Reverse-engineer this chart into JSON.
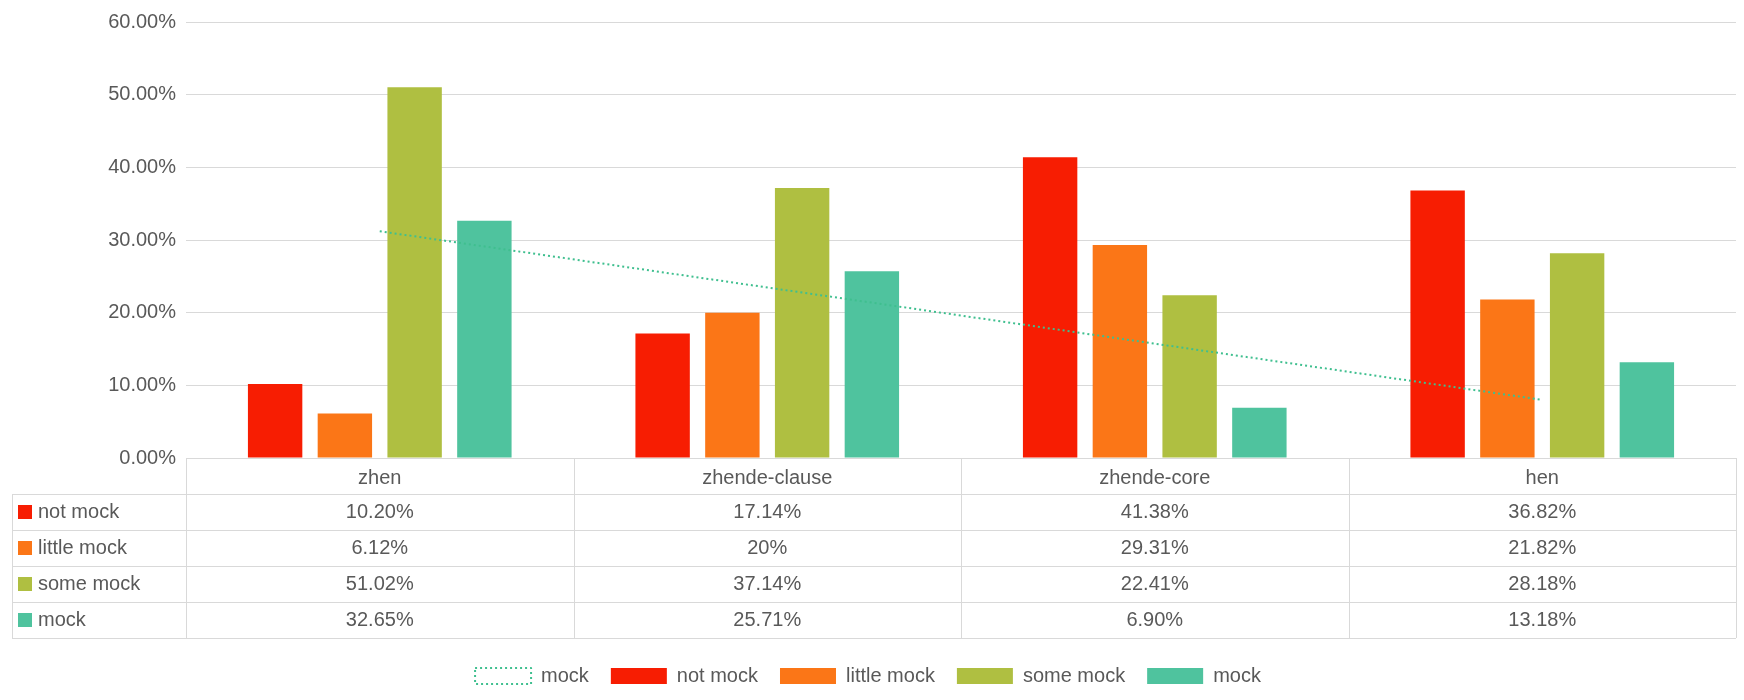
{
  "chart_data": {
    "type": "bar",
    "categories": [
      "zhen",
      "zhende-clause",
      "zhende-core",
      "hen"
    ],
    "series": [
      {
        "name": "not mock",
        "color": "#f71d02",
        "values": [
          10.2,
          17.14,
          41.38,
          36.82
        ],
        "value_labels": [
          "10.20%",
          "17.14%",
          "41.38%",
          "36.82%"
        ]
      },
      {
        "name": "little mock",
        "color": "#fb7617",
        "values": [
          6.12,
          20,
          29.31,
          21.82
        ],
        "value_labels": [
          "6.12%",
          "20%",
          "29.31%",
          "21.82%"
        ]
      },
      {
        "name": "some mock",
        "color": "#afbf41",
        "values": [
          51.02,
          37.14,
          22.41,
          28.18
        ],
        "value_labels": [
          "51.02%",
          "37.14%",
          "22.41%",
          "28.18%"
        ]
      },
      {
        "name": "mock",
        "color": "#4fc39e",
        "values": [
          32.65,
          25.71,
          6.9,
          13.18
        ],
        "value_labels": [
          "32.65%",
          "25.71%",
          "6.90%",
          "13.18%"
        ]
      },
      {
        "name": "mock",
        "type": "line",
        "color": "#3fbf8f",
        "x": [
          "zhen",
          "hen"
        ],
        "values": [
          31.2,
          8.0
        ],
        "line_style": "dotted",
        "marker": "none"
      }
    ],
    "ylim": [
      0,
      60
    ],
    "yticks": [
      {
        "value": 0,
        "label": "0.00%"
      },
      {
        "value": 10,
        "label": "10.00%"
      },
      {
        "value": 20,
        "label": "20.00%"
      },
      {
        "value": 30,
        "label": "30.00%"
      },
      {
        "value": 40,
        "label": "40.00%"
      },
      {
        "value": 50,
        "label": "50.00%"
      },
      {
        "value": 60,
        "label": "60.00%"
      }
    ],
    "grid": "y",
    "legend": "bottom"
  }
}
